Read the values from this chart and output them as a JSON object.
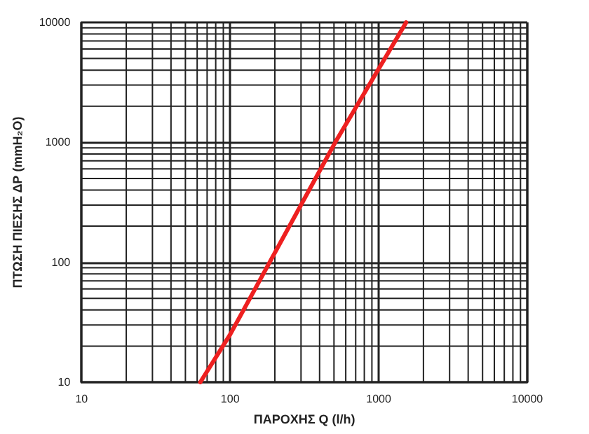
{
  "chart_data": {
    "type": "line",
    "xlabel": "ΠΑΡΟΧΗΣ Q (l/h)",
    "ylabel": "ΠΤΩΣΗ ΠΙΕΣΗΣ ΔΡ (mmH₂O)",
    "x": [
      63,
      100,
      510,
      1530
    ],
    "series": [
      {
        "color": "#ee2020",
        "values": [
          10,
          25,
          1000,
          10000
        ]
      }
    ],
    "xlim": [
      10,
      10000
    ],
    "ylim": [
      10,
      10000
    ],
    "xticks": [
      10,
      100,
      1000,
      10000
    ],
    "yticks": [
      10,
      100,
      1000,
      10000
    ],
    "log": "xy",
    "grid": true,
    "marker": "none",
    "line_style": "solid"
  }
}
